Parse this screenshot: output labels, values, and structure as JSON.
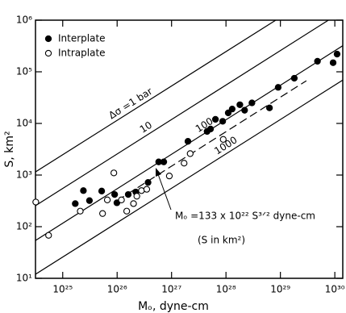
{
  "chart_data": {
    "type": "scatter",
    "xlabel": "Mₒ, dyne-cm",
    "ylabel": "S, km²",
    "log_x": true,
    "log_y": true,
    "xlim": [
      3.16e+24,
      1.4e+30
    ],
    "ylim": [
      10,
      1000000
    ],
    "xticks": [
      {
        "value": 1e+25,
        "label": "10²⁵"
      },
      {
        "value": 1e+26,
        "label": "10²⁶"
      },
      {
        "value": 1e+27,
        "label": "10²⁷"
      },
      {
        "value": 1e+28,
        "label": "10²⁸"
      },
      {
        "value": 1e+29,
        "label": "10²⁹"
      },
      {
        "value": 1e+30,
        "label": "10³⁰"
      }
    ],
    "yticks": [
      {
        "value": 10,
        "label": "10¹"
      },
      {
        "value": 100,
        "label": "10²"
      },
      {
        "value": 1000,
        "label": "10³"
      },
      {
        "value": 10000,
        "label": "10⁴"
      },
      {
        "value": 100000,
        "label": "10⁵"
      },
      {
        "value": 1000000,
        "label": "10⁶"
      }
    ],
    "legend": "upper left",
    "series": [
      {
        "name": "Interplate",
        "marker": "filled",
        "color": "#000000",
        "x": [
          1.7e+25,
          2.4e+25,
          3.1e+25,
          5.2e+25,
          9e+25,
          9.9e+25,
          1.6e+26,
          2.2e+26,
          3.7e+26,
          5.8e+26,
          7.2e+26,
          2e+27,
          4.5e+27,
          5.2e+27,
          6.4e+27,
          8.7e+27,
          1.1e+28,
          1.3e+28,
          1.8e+28,
          2.2e+28,
          3e+28,
          6.3e+28,
          9.1e+28,
          1.8e+29,
          4.8e+29,
          9.3e+29,
          1.1e+30
        ],
        "y": [
          280,
          500,
          320,
          490,
          420,
          290,
          420,
          470,
          720,
          1800,
          1800,
          4500,
          7000,
          7800,
          12000,
          11000,
          16000,
          19000,
          23000,
          18000,
          25000,
          20000,
          50000,
          75000,
          160000,
          150000,
          220000
        ]
      },
      {
        "name": "Intraplate",
        "marker": "open",
        "color": "#000000",
        "x": [
          3.2e+24,
          5.5e+24,
          2.1e+25,
          5.4e+25,
          6.6e+25,
          8.7e+25,
          1.2e+26,
          1.5e+26,
          2e+26,
          2.3e+26,
          2.8e+26,
          3.5e+26,
          9.1e+26,
          1.7e+27,
          2.2e+27,
          8.9e+27
        ],
        "y": [
          300,
          68,
          200,
          180,
          330,
          1100,
          330,
          200,
          280,
          390,
          500,
          530,
          960,
          1700,
          2600,
          4900
        ]
      }
    ],
    "reference_lines": [
      {
        "label": "Δσ =1 bar",
        "style": "solid",
        "x": [
          3.16e+24,
          1.4e+30
        ],
        "y": [
          1150,
          6600000
        ]
      },
      {
        "label": "10",
        "style": "solid",
        "x": [
          3.16e+24,
          1.4e+30
        ],
        "y": [
          255,
          1500000
        ]
      },
      {
        "label": "100",
        "style": "solid",
        "x": [
          3.16e+24,
          1.4e+30
        ],
        "y": [
          54,
          320000
        ]
      },
      {
        "label": "1000",
        "style": "solid",
        "x": [
          3.16e+24,
          1.4e+30
        ],
        "y": [
          12,
          69000
        ]
      },
      {
        "style": "dashed",
        "x": [
          1e+26,
          3e+29
        ],
        "y": [
          320,
          67000
        ]
      }
    ],
    "annotations": [
      {
        "text": "Mₒ =133 x 10²² S³ᐟ² dyne-cm"
      },
      {
        "text": "(S in km²)"
      }
    ]
  }
}
